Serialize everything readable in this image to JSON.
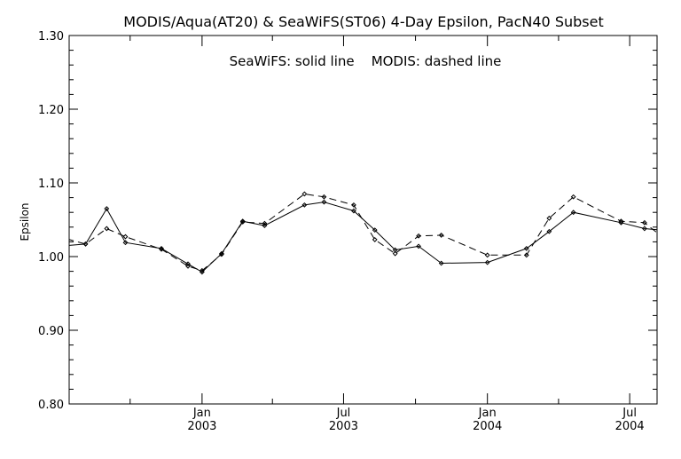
{
  "chart_data": {
    "type": "line",
    "title": "MODIS/Aqua(AT20) & SeaWiFS(ST06) 4-Day Epsilon, PacN40 Subset",
    "annotation": "SeaWiFS: solid line    MODIS: dashed line",
    "ylabel": "Epsilon",
    "xlabel": "",
    "ylim": [
      0.8,
      1.3
    ],
    "xlim": [
      "2002-07-15",
      "2004-08-05"
    ],
    "grid": false,
    "y_ticks": [
      "0.80",
      "0.90",
      "1.00",
      "1.10",
      "1.20",
      "1.30"
    ],
    "x_ticks": [
      {
        "date": "2003-01-01",
        "month": "Jan",
        "year": "2003"
      },
      {
        "date": "2003-07-01",
        "month": "Jul",
        "year": "2003"
      },
      {
        "date": "2004-01-01",
        "month": "Jan",
        "year": "2004"
      },
      {
        "date": "2004-07-01",
        "month": "Jul",
        "year": "2004"
      }
    ],
    "series": [
      {
        "name": "SeaWiFS",
        "style": "solid",
        "color": "#000000",
        "points": [
          {
            "x": "2002-07-12",
            "y": 1.015
          },
          {
            "x": "2002-08-05",
            "y": 1.017
          },
          {
            "x": "2002-09-01",
            "y": 1.065
          },
          {
            "x": "2002-09-25",
            "y": 1.019
          },
          {
            "x": "2002-11-10",
            "y": 1.011
          },
          {
            "x": "2002-12-14",
            "y": 0.99
          },
          {
            "x": "2003-01-01",
            "y": 0.979
          },
          {
            "x": "2003-01-26",
            "y": 1.004
          },
          {
            "x": "2003-02-22",
            "y": 1.048
          },
          {
            "x": "2003-03-22",
            "y": 1.042
          },
          {
            "x": "2003-05-12",
            "y": 1.07
          },
          {
            "x": "2003-06-06",
            "y": 1.074
          },
          {
            "x": "2003-07-14",
            "y": 1.062
          },
          {
            "x": "2003-08-10",
            "y": 1.036
          },
          {
            "x": "2003-09-05",
            "y": 1.009
          },
          {
            "x": "2003-10-05",
            "y": 1.014
          },
          {
            "x": "2003-11-03",
            "y": 0.991
          },
          {
            "x": "2004-01-01",
            "y": 0.992
          },
          {
            "x": "2004-02-20",
            "y": 1.011
          },
          {
            "x": "2004-03-20",
            "y": 1.034
          },
          {
            "x": "2004-04-20",
            "y": 1.06
          },
          {
            "x": "2004-06-20",
            "y": 1.046
          },
          {
            "x": "2004-07-20",
            "y": 1.038
          },
          {
            "x": "2004-08-10",
            "y": 1.036
          }
        ]
      },
      {
        "name": "MODIS",
        "style": "dashed",
        "color": "#000000",
        "points": [
          {
            "x": "2002-07-12",
            "y": 1.024
          },
          {
            "x": "2002-08-05",
            "y": 1.017
          },
          {
            "x": "2002-09-01",
            "y": 1.038
          },
          {
            "x": "2002-09-25",
            "y": 1.027
          },
          {
            "x": "2002-11-10",
            "y": 1.01
          },
          {
            "x": "2002-12-14",
            "y": 0.987
          },
          {
            "x": "2003-01-01",
            "y": 0.981
          },
          {
            "x": "2003-01-26",
            "y": 1.003
          },
          {
            "x": "2003-02-22",
            "y": 1.047
          },
          {
            "x": "2003-03-22",
            "y": 1.045
          },
          {
            "x": "2003-05-12",
            "y": 1.085
          },
          {
            "x": "2003-06-06",
            "y": 1.081
          },
          {
            "x": "2003-07-14",
            "y": 1.07
          },
          {
            "x": "2003-08-10",
            "y": 1.023
          },
          {
            "x": "2003-09-05",
            "y": 1.004
          },
          {
            "x": "2003-10-05",
            "y": 1.028
          },
          {
            "x": "2003-11-03",
            "y": 1.029
          },
          {
            "x": "2004-01-01",
            "y": 1.002
          },
          {
            "x": "2004-02-20",
            "y": 1.002
          },
          {
            "x": "2004-03-20",
            "y": 1.052
          },
          {
            "x": "2004-04-20",
            "y": 1.081
          },
          {
            "x": "2004-06-20",
            "y": 1.048
          },
          {
            "x": "2004-07-20",
            "y": 1.046
          },
          {
            "x": "2004-08-10",
            "y": 1.028
          }
        ]
      }
    ]
  }
}
